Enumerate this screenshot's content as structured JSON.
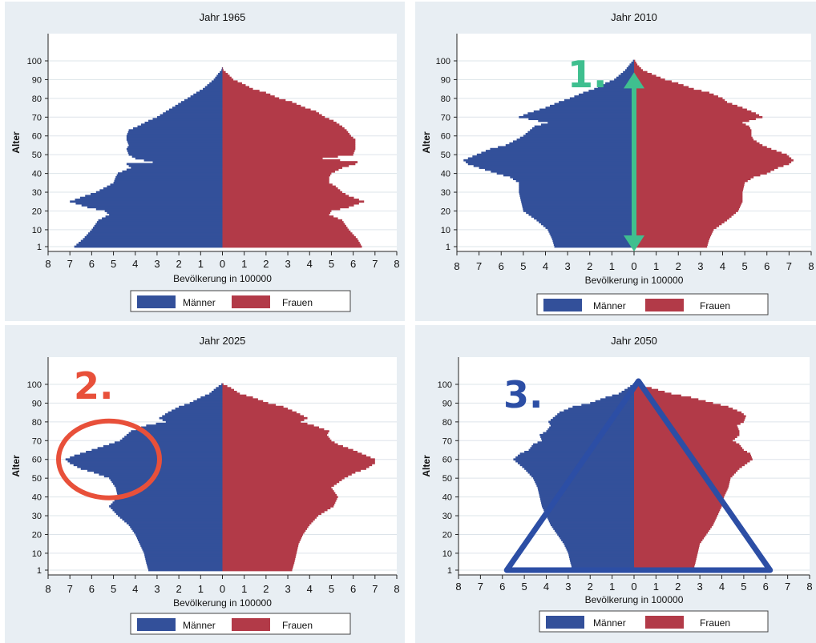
{
  "colors": {
    "male": "#33509a",
    "female": "#b23a48",
    "grid": "#dde4ea",
    "annot1": "#3fbf8f",
    "annot2": "#e8503a",
    "annot3": "#2c4ea5"
  },
  "chart_data": [
    {
      "type": "bar",
      "subtype": "population-pyramid",
      "title": "Jahr 1965",
      "xlabel": "Bevölkerung in 100000",
      "ylabel": "Alter",
      "x_ticks": [
        "8",
        "7",
        "6",
        "5",
        "4",
        "3",
        "2",
        "1",
        "0",
        "1",
        "2",
        "3",
        "4",
        "5",
        "6",
        "7",
        "8"
      ],
      "y_ticks": [
        "1",
        "10",
        "20",
        "30",
        "40",
        "50",
        "60",
        "70",
        "80",
        "90",
        "100"
      ],
      "xlim": [
        -8,
        8
      ],
      "ylim": [
        0,
        100
      ],
      "grid": true,
      "legend": {
        "entries": [
          "Männer",
          "Frauen"
        ],
        "position": "bottom"
      },
      "ages": [
        1,
        5,
        10,
        15,
        18,
        20,
        22,
        25,
        28,
        30,
        33,
        35,
        38,
        40,
        43,
        45,
        46,
        48,
        50,
        53,
        55,
        58,
        60,
        63,
        65,
        68,
        70,
        73,
        75,
        78,
        80,
        83,
        85,
        88,
        90,
        93,
        95,
        97
      ],
      "series": [
        {
          "name": "Männer",
          "values": [
            6.8,
            6.4,
            6.0,
            5.7,
            5.2,
            5.4,
            6.2,
            7.0,
            6.3,
            5.8,
            5.3,
            5.0,
            4.9,
            4.8,
            4.2,
            4.4,
            3.2,
            4.0,
            4.3,
            4.4,
            4.3,
            4.4,
            4.4,
            4.3,
            3.9,
            3.4,
            3.0,
            2.6,
            2.3,
            1.9,
            1.6,
            1.2,
            0.9,
            0.6,
            0.4,
            0.2,
            0.05,
            0.0
          ]
        },
        {
          "name": "Frauen",
          "values": [
            6.4,
            6.2,
            5.8,
            5.5,
            4.9,
            5.0,
            5.8,
            6.5,
            5.8,
            5.5,
            5.2,
            4.9,
            4.9,
            5.0,
            5.5,
            6.1,
            6.2,
            4.6,
            6.0,
            6.1,
            6.1,
            6.1,
            5.9,
            5.7,
            5.5,
            5.1,
            4.7,
            4.3,
            3.8,
            3.2,
            2.6,
            2.0,
            1.4,
            0.9,
            0.5,
            0.25,
            0.05,
            0.0
          ]
        }
      ]
    },
    {
      "type": "bar",
      "subtype": "population-pyramid",
      "title": "Jahr 2010",
      "xlabel": "Bevölkerung in 100000",
      "ylabel": "Alter",
      "x_ticks": [
        "8",
        "7",
        "6",
        "5",
        "4",
        "3",
        "2",
        "1",
        "0",
        "1",
        "2",
        "3",
        "4",
        "5",
        "6",
        "7",
        "8"
      ],
      "y_ticks": [
        "1",
        "10",
        "20",
        "30",
        "40",
        "50",
        "60",
        "70",
        "80",
        "90",
        "100"
      ],
      "xlim": [
        -8,
        8
      ],
      "ylim": [
        0,
        100
      ],
      "grid": true,
      "legend": {
        "entries": [
          "Männer",
          "Frauen"
        ],
        "position": "bottom"
      },
      "ages": [
        1,
        5,
        10,
        15,
        20,
        25,
        30,
        35,
        38,
        40,
        43,
        45,
        47,
        50,
        53,
        55,
        58,
        60,
        63,
        65,
        67,
        70,
        72,
        75,
        78,
        80,
        83,
        85,
        88,
        90,
        93,
        95,
        98,
        100
      ],
      "series": [
        {
          "name": "Männer",
          "values": [
            3.6,
            3.7,
            3.9,
            4.4,
            5.0,
            5.1,
            5.2,
            5.2,
            5.6,
            6.2,
            7.0,
            7.5,
            7.7,
            7.1,
            6.5,
            5.8,
            5.3,
            5.0,
            4.7,
            4.5,
            3.9,
            5.2,
            4.8,
            4.0,
            3.4,
            2.9,
            2.3,
            1.8,
            1.3,
            0.9,
            0.6,
            0.4,
            0.2,
            0.05
          ]
        },
        {
          "name": "Frauen",
          "values": [
            3.3,
            3.4,
            3.6,
            4.2,
            4.7,
            4.9,
            4.9,
            5.0,
            5.4,
            6.0,
            6.5,
            7.0,
            7.2,
            6.9,
            6.2,
            5.8,
            5.4,
            5.3,
            5.3,
            5.2,
            4.9,
            5.8,
            5.5,
            4.9,
            4.2,
            4.0,
            3.4,
            2.7,
            2.0,
            1.4,
            0.8,
            0.4,
            0.15,
            0.05
          ]
        }
      ]
    },
    {
      "type": "bar",
      "subtype": "population-pyramid",
      "title": "Jahr 2025",
      "xlabel": "Bevölkerung in 100000",
      "ylabel": "Alter",
      "x_ticks": [
        "8",
        "7",
        "6",
        "5",
        "4",
        "3",
        "2",
        "1",
        "0",
        "1",
        "2",
        "3",
        "4",
        "5",
        "6",
        "7",
        "8"
      ],
      "y_ticks": [
        "1",
        "10",
        "20",
        "30",
        "40",
        "50",
        "60",
        "70",
        "80",
        "90",
        "100"
      ],
      "xlim": [
        -8,
        8
      ],
      "ylim": [
        0,
        100
      ],
      "grid": true,
      "legend": {
        "entries": [
          "Männer",
          "Frauen"
        ],
        "position": "bottom"
      },
      "ages": [
        1,
        5,
        10,
        15,
        20,
        25,
        30,
        35,
        40,
        45,
        50,
        53,
        55,
        58,
        60,
        62,
        65,
        68,
        70,
        73,
        75,
        78,
        80,
        82,
        85,
        88,
        90,
        93,
        95,
        98,
        100
      ],
      "series": [
        {
          "name": "Männer",
          "values": [
            3.4,
            3.5,
            3.6,
            3.8,
            4.0,
            4.3,
            4.8,
            5.2,
            4.8,
            4.9,
            5.2,
            5.9,
            6.5,
            7.0,
            7.2,
            6.8,
            6.0,
            5.2,
            4.7,
            4.4,
            4.2,
            3.5,
            2.6,
            2.9,
            2.5,
            2.0,
            1.5,
            1.0,
            0.6,
            0.3,
            0.05
          ]
        },
        {
          "name": "Frauen",
          "values": [
            3.2,
            3.3,
            3.4,
            3.5,
            3.7,
            4.0,
            4.4,
            5.1,
            5.3,
            5.0,
            5.6,
            6.1,
            6.6,
            7.0,
            7.0,
            6.6,
            6.0,
            5.3,
            5.0,
            4.8,
            4.9,
            4.2,
            3.6,
            3.9,
            3.4,
            2.8,
            2.1,
            1.4,
            0.8,
            0.4,
            0.05
          ]
        }
      ]
    },
    {
      "type": "bar",
      "subtype": "population-pyramid",
      "title": "Jahr 2050",
      "xlabel": "Bevölkerung in 100000",
      "ylabel": "Alter",
      "x_ticks": [
        "8",
        "7",
        "6",
        "5",
        "4",
        "3",
        "2",
        "1",
        "0",
        "1",
        "2",
        "3",
        "4",
        "5",
        "6",
        "7",
        "8"
      ],
      "y_ticks": [
        "1",
        "10",
        "20",
        "30",
        "40",
        "50",
        "60",
        "70",
        "80",
        "90",
        "100"
      ],
      "xlim": [
        -8,
        8
      ],
      "ylim": [
        0,
        100
      ],
      "grid": true,
      "legend": {
        "entries": [
          "Männer",
          "Frauen"
        ],
        "position": "bottom"
      },
      "ages": [
        1,
        5,
        10,
        15,
        20,
        25,
        30,
        35,
        40,
        45,
        50,
        55,
        60,
        63,
        65,
        68,
        70,
        73,
        75,
        78,
        80,
        83,
        85,
        88,
        90,
        93,
        95,
        98,
        100
      ],
      "series": [
        {
          "name": "Männer",
          "values": [
            2.8,
            2.9,
            3.0,
            3.2,
            3.5,
            3.8,
            4.0,
            4.2,
            4.3,
            4.4,
            4.6,
            5.0,
            5.5,
            5.2,
            4.8,
            4.6,
            4.2,
            4.3,
            4.0,
            3.8,
            3.9,
            3.6,
            3.4,
            2.8,
            2.0,
            1.3,
            0.7,
            0.3,
            0.05
          ]
        },
        {
          "name": "Frauen",
          "values": [
            2.7,
            2.8,
            2.9,
            3.0,
            3.3,
            3.6,
            3.8,
            4.0,
            4.1,
            4.3,
            4.4,
            4.8,
            5.4,
            5.3,
            5.0,
            4.8,
            4.5,
            4.8,
            4.8,
            4.7,
            5.0,
            5.1,
            4.9,
            4.3,
            3.6,
            2.6,
            1.7,
            0.8,
            0.1
          ]
        }
      ]
    }
  ],
  "annotations": {
    "a1": {
      "label": "1.",
      "color": "#3fbf8f"
    },
    "a2": {
      "label": "2.",
      "color": "#e8503a"
    },
    "a3": {
      "label": "3.",
      "color": "#2c4ea5"
    }
  }
}
